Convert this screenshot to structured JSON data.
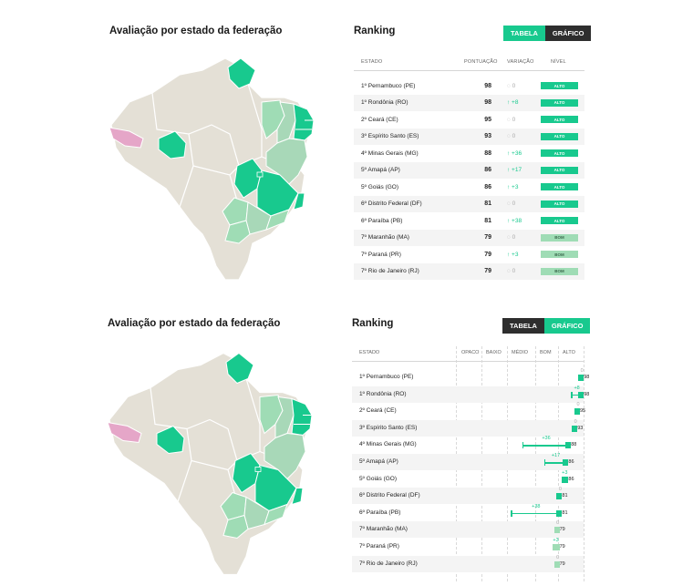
{
  "colors": {
    "alto": "#18c98e",
    "bom": "#9fdcb5",
    "medio": "#a8d8b8",
    "opaco": "#e5b0cc",
    "neutral": "#e4e0d6",
    "dark": "#2e2e2e"
  },
  "top": {
    "map_title": "Avaliação por estado da federação",
    "ranking_title": "Ranking",
    "toggle": {
      "tabela": "TABELA",
      "grafico": "GRÁFICO",
      "active": "tabela"
    },
    "columns": {
      "estado": "ESTADO",
      "pontuacao": "PONTUAÇÃO",
      "variacao": "VARIAÇÃO",
      "nivel": "NÍVEL"
    }
  },
  "bottom": {
    "map_title": "Avaliação por estado da federação",
    "ranking_title": "Ranking",
    "toggle": {
      "tabela": "TABELA",
      "grafico": "GRÁFICO",
      "active": "grafico"
    },
    "columns": {
      "estado": "ESTADO",
      "opaco": "OPACO",
      "baixo": "BAIXO",
      "medio": "MÉDIO",
      "bom": "BOM",
      "alto": "ALTO"
    }
  },
  "rows": [
    {
      "name": "1º Pernambuco (PE)",
      "score": "98",
      "variation": "0",
      "var_display": "◌ 0",
      "delta": 0,
      "level": "ALTO"
    },
    {
      "name": "1º Rondônia (RO)",
      "score": "98",
      "variation": "+8",
      "var_display": "↑ +8",
      "delta": 8,
      "level": "ALTO"
    },
    {
      "name": "2º Ceará (CE)",
      "score": "95",
      "variation": "0",
      "var_display": "◌ 0",
      "delta": 0,
      "level": "ALTO"
    },
    {
      "name": "3º Espírito Santo (ES)",
      "score": "93",
      "variation": "0",
      "var_display": "◌ 0",
      "delta": 0,
      "level": "ALTO"
    },
    {
      "name": "4º Minas Gerais (MG)",
      "score": "88",
      "variation": "+36",
      "var_display": "↑ +36",
      "delta": 36,
      "level": "ALTO"
    },
    {
      "name": "5º Amapá (AP)",
      "score": "86",
      "variation": "+17",
      "var_display": "↑ +17",
      "delta": 17,
      "level": "ALTO"
    },
    {
      "name": "5º Goiás (GO)",
      "score": "86",
      "variation": "+3",
      "var_display": "↑ +3",
      "delta": 3,
      "level": "ALTO"
    },
    {
      "name": "6º Distrito Federal (DF)",
      "score": "81",
      "variation": "0",
      "var_display": "◌ 0",
      "delta": 0,
      "level": "ALTO"
    },
    {
      "name": "6º Paraíba (PB)",
      "score": "81",
      "variation": "+38",
      "var_display": "↑ +38",
      "delta": 38,
      "level": "ALTO"
    },
    {
      "name": "7º Maranhão (MA)",
      "score": "79",
      "variation": "0",
      "var_display": "◌ 0",
      "delta": 0,
      "level": "BOM"
    },
    {
      "name": "7º Paraná (PR)",
      "score": "79",
      "variation": "+3",
      "var_display": "↑ +3",
      "delta": 3,
      "level": "BOM"
    },
    {
      "name": "7º Rio de Janeiro (RJ)",
      "score": "79",
      "variation": "0",
      "var_display": "◌ 0",
      "delta": 0,
      "level": "BOM"
    }
  ]
}
